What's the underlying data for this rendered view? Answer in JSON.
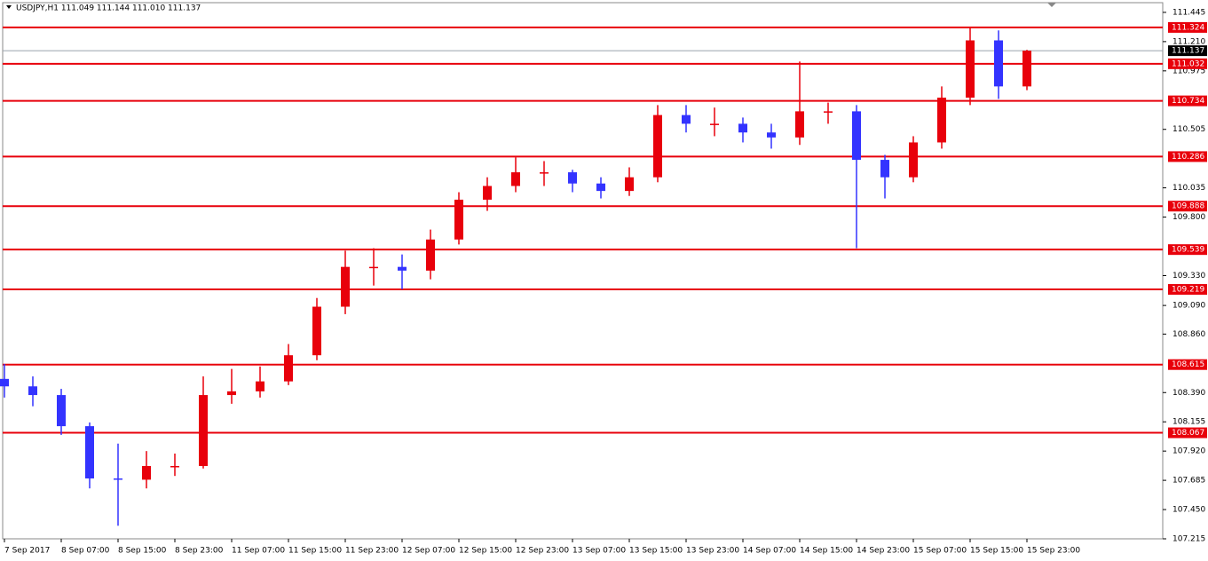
{
  "chart_data": {
    "type": "candlestick",
    "title": "USDJPY,H1  111.049 111.144 111.010 111.137",
    "categories": [
      "7 Sep 2017",
      null,
      "8 Sep 07:00",
      null,
      "8 Sep 15:00",
      null,
      "8 Sep 23:00",
      null,
      "11 Sep 07:00",
      null,
      "11 Sep 15:00",
      null,
      "11 Sep 23:00",
      null,
      "12 Sep 07:00",
      null,
      "12 Sep 15:00",
      null,
      "12 Sep 23:00",
      null,
      "13 Sep 07:00",
      null,
      "13 Sep 15:00",
      null,
      "13 Sep 23:00",
      null,
      "14 Sep 07:00",
      null,
      "14 Sep 15:00",
      null,
      "14 Sep 23:00",
      null,
      "15 Sep 07:00",
      null,
      "15 Sep 15:00",
      null,
      "15 Sep 23:00"
    ],
    "open": [
      108.5,
      108.44,
      108.37,
      108.12,
      107.7,
      107.69,
      107.8,
      107.8,
      108.37,
      108.4,
      108.48,
      108.69,
      109.08,
      109.4,
      109.4,
      109.37,
      109.62,
      109.94,
      110.05,
      110.16,
      110.16,
      110.07,
      110.01,
      110.12,
      110.62,
      110.55,
      110.55,
      110.48,
      110.44,
      110.65,
      110.65,
      110.26,
      110.12,
      110.4,
      110.76,
      111.22,
      110.85
    ],
    "high": [
      108.62,
      108.52,
      108.42,
      108.15,
      107.98,
      107.92,
      107.9,
      108.52,
      108.58,
      108.6,
      108.78,
      109.15,
      109.53,
      109.55,
      109.5,
      109.7,
      110.0,
      110.12,
      110.28,
      110.25,
      110.18,
      110.12,
      110.2,
      110.7,
      110.7,
      110.68,
      110.6,
      110.55,
      111.05,
      110.72,
      110.7,
      110.3,
      110.45,
      110.85,
      111.33,
      111.3,
      111.144
    ],
    "low": [
      108.35,
      108.28,
      108.05,
      107.62,
      107.32,
      107.62,
      107.72,
      107.78,
      108.3,
      108.35,
      108.45,
      108.65,
      109.02,
      109.25,
      109.22,
      109.3,
      109.58,
      109.85,
      110.0,
      110.05,
      110.0,
      109.95,
      109.97,
      110.08,
      110.48,
      110.45,
      110.4,
      110.35,
      110.38,
      110.55,
      109.55,
      109.95,
      110.08,
      110.35,
      110.7,
      110.75,
      110.82
    ],
    "close": [
      108.44,
      108.37,
      108.12,
      107.7,
      107.69,
      107.8,
      107.8,
      108.37,
      108.4,
      108.48,
      108.69,
      109.08,
      109.4,
      109.4,
      109.37,
      109.62,
      109.94,
      110.05,
      110.16,
      110.16,
      110.07,
      110.01,
      110.12,
      110.62,
      110.55,
      110.55,
      110.48,
      110.44,
      110.65,
      110.65,
      110.26,
      110.12,
      110.4,
      110.76,
      111.22,
      110.85,
      111.137
    ],
    "up_color": "#e8000b",
    "down_color": "#3333ff",
    "level_color": "#e8000b",
    "levels": [
      111.324,
      111.032,
      110.734,
      110.286,
      109.888,
      109.539,
      109.219,
      108.615,
      108.067
    ],
    "current_price": 111.137,
    "ylim": [
      107.215,
      111.523
    ],
    "yticks": [
      111.445,
      {
        "value": 111.21,
        "label": "111.210"
      },
      110.975,
      110.505,
      110.035,
      {
        "value": 109.8,
        "label": "109.800"
      },
      {
        "value": 109.33,
        "label": "109.330"
      },
      {
        "value": 109.09,
        "label": "109.090"
      },
      {
        "value": 108.86,
        "label": "108.860"
      },
      {
        "value": 108.39,
        "label": "108.390"
      },
      108.155,
      {
        "value": 107.92,
        "label": "107.920"
      },
      107.685,
      {
        "value": 107.45,
        "label": "107.450"
      },
      107.215
    ]
  }
}
